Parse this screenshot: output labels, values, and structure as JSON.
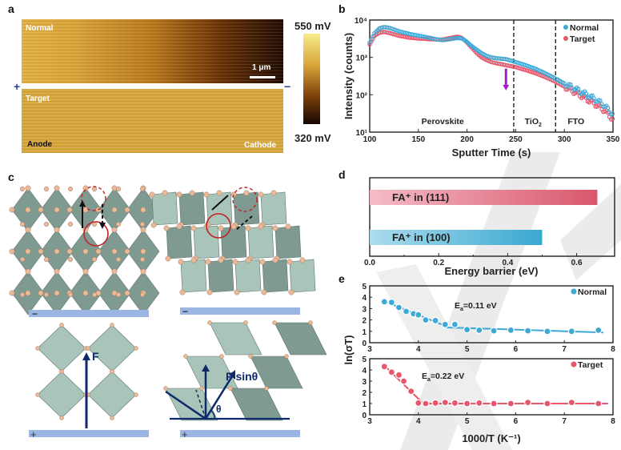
{
  "panel_labels": {
    "a": "a",
    "b": "b",
    "c": "c",
    "d": "d",
    "e": "e"
  },
  "panel_a": {
    "normal_label": "Normal",
    "target_label": "Target",
    "scale_bar": "1 μm",
    "plus": "+",
    "minus": "−",
    "anode": "Anode",
    "cathode": "Cathode",
    "colorbar_max": "550 mV",
    "colorbar_min": "320 mV",
    "colors": {
      "bright": "#f3dc6c",
      "mid": "#c8901e",
      "dark": "#1e0a02",
      "target": "#d6a73c"
    }
  },
  "panel_c": {
    "force_label": "F",
    "force_sin_label": "F sinθ",
    "theta": "θ",
    "plus": "+",
    "minus": "−",
    "colors": {
      "octahedron": "#7f9a90",
      "octahedron_light": "#a9c4b8",
      "atom": "#e9b99a",
      "electrode": "#9bb6e3",
      "arrow": "#0f2a6b",
      "circle": "#c0222a"
    }
  },
  "chart_data": [
    {
      "id": "b",
      "type": "scatter",
      "xlabel": "Sputter Time (s)",
      "ylabel": "Intensity (counts)",
      "xlim": [
        100,
        350
      ],
      "ylim_log10": [
        1,
        4
      ],
      "yscale": "log",
      "x_ticks": [
        "100",
        "150",
        "200",
        "250",
        "300",
        "350"
      ],
      "y_ticks": [
        "10¹",
        "10²",
        "10³",
        "10⁴"
      ],
      "vlines": [
        248,
        291
      ],
      "region_labels": [
        {
          "text": "Perovskite",
          "x": 175
        },
        {
          "text": "TiO",
          "sub": "2",
          "x": 268
        },
        {
          "text": "FTO",
          "x": 312
        }
      ],
      "arrow": {
        "x": 240,
        "from": 500,
        "to": 130,
        "color": "#a020c8"
      },
      "legend_position": "top-right",
      "series": [
        {
          "name": "Normal",
          "color": "#3fa9d6",
          "x": [
            100,
            105,
            110,
            115,
            120,
            130,
            140,
            150,
            160,
            170,
            175,
            180,
            190,
            195,
            200,
            205,
            210,
            215,
            220,
            225,
            230,
            240,
            250,
            260,
            270,
            280,
            290,
            300,
            310,
            320,
            330,
            340,
            345,
            350
          ],
          "y": [
            2500,
            4500,
            6000,
            6500,
            6200,
            5000,
            4300,
            3800,
            3400,
            3000,
            2900,
            3000,
            3300,
            3200,
            2600,
            2000,
            1600,
            1300,
            1100,
            1000,
            950,
            900,
            750,
            620,
            500,
            380,
            280,
            200,
            150,
            110,
            80,
            55,
            40,
            30
          ]
        },
        {
          "name": "Target",
          "color": "#e8566c",
          "x": [
            100,
            105,
            110,
            115,
            120,
            130,
            140,
            150,
            160,
            170,
            175,
            180,
            190,
            195,
            200,
            205,
            210,
            215,
            220,
            225,
            230,
            240,
            250,
            260,
            270,
            280,
            290,
            300,
            310,
            320,
            330,
            340,
            345,
            350
          ],
          "y": [
            2200,
            3800,
            4600,
            4800,
            4500,
            3800,
            3400,
            3200,
            3100,
            3000,
            3000,
            3200,
            3600,
            3300,
            2500,
            1800,
            1300,
            1000,
            850,
            750,
            700,
            620,
            550,
            460,
            380,
            300,
            230,
            165,
            120,
            85,
            60,
            40,
            30,
            22
          ]
        }
      ]
    },
    {
      "id": "d",
      "type": "bar",
      "orientation": "horizontal",
      "categories": [
        "FA⁺ in (111)",
        "FA⁺ in (100)"
      ],
      "values": [
        0.66,
        0.5
      ],
      "colors": [
        [
          "#f4bcc6",
          "#d9566c"
        ],
        [
          "#acdcee",
          "#3aa8d0"
        ]
      ],
      "xlabel": "Energy barrier (eV)",
      "xlim": [
        0,
        0.71
      ],
      "x_ticks": [
        "0.0",
        "0.2",
        "0.4",
        "0.6"
      ]
    },
    {
      "id": "e",
      "type": "scatter",
      "xlabel": "1000/T (K⁻¹)",
      "ylabel": "ln(σT)",
      "xlim": [
        3,
        8
      ],
      "ylim": [
        0,
        5
      ],
      "x_ticks": [
        "3",
        "4",
        "5",
        "6",
        "7",
        "8"
      ],
      "y_ticks": [
        "0",
        "1",
        "2",
        "3",
        "4",
        "5"
      ],
      "panels": [
        {
          "name": "Normal",
          "color": "#3fa9d6",
          "ea": {
            "E": "E",
            "sub": "a",
            "value": "=0.11 eV"
          },
          "x": [
            3.3,
            3.45,
            3.6,
            3.75,
            3.9,
            4.0,
            4.15,
            4.35,
            4.55,
            4.75,
            5.0,
            5.25,
            5.55,
            5.9,
            6.25,
            6.65,
            7.15,
            7.7
          ],
          "y": [
            3.6,
            3.55,
            3.1,
            2.75,
            2.55,
            2.45,
            2.0,
            1.95,
            1.6,
            1.6,
            1.15,
            1.1,
            1.05,
            1.1,
            1.05,
            1.0,
            1.0,
            1.1
          ],
          "fits": [
            [
              3.3,
              3.65,
              4.6,
              1.4
            ],
            [
              4.55,
              1.35,
              7.8,
              0.9
            ]
          ]
        },
        {
          "name": "Target",
          "color": "#e8566c",
          "ea": {
            "E": "E",
            "sub": "a",
            "value": "=0.22 eV"
          },
          "x": [
            3.3,
            3.45,
            3.6,
            3.7,
            3.85,
            4.0,
            4.15,
            4.35,
            4.55,
            4.75,
            5.0,
            5.25,
            5.55,
            5.9,
            6.25,
            6.65,
            7.15,
            7.7
          ],
          "y": [
            4.3,
            3.8,
            3.55,
            3.0,
            2.1,
            1.05,
            1.0,
            1.05,
            1.1,
            1.05,
            1.0,
            1.05,
            1.0,
            1.0,
            1.1,
            1.0,
            1.1,
            1.0
          ],
          "fits": [
            [
              3.3,
              4.4,
              4.1,
              1.0
            ],
            [
              4.0,
              1.0,
              7.9,
              1.0
            ]
          ]
        }
      ]
    }
  ]
}
